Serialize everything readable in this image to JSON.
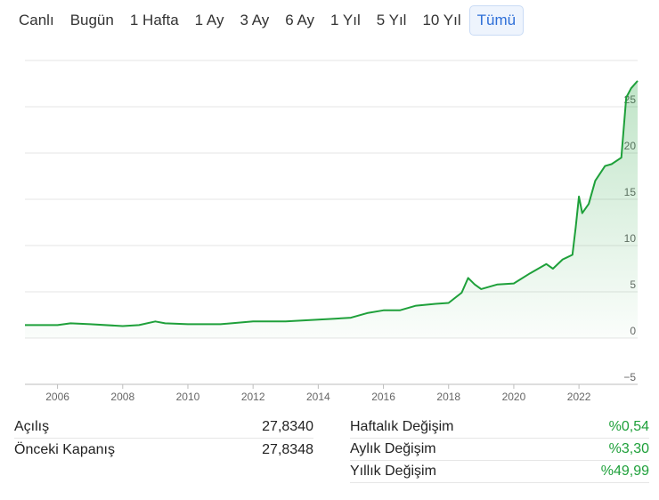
{
  "tabs": [
    {
      "label": "Canlı"
    },
    {
      "label": "Bugün"
    },
    {
      "label": "1 Hafta"
    },
    {
      "label": "1 Ay"
    },
    {
      "label": "3 Ay"
    },
    {
      "label": "6 Ay"
    },
    {
      "label": "1 Yıl"
    },
    {
      "label": "5 Yıl"
    },
    {
      "label": "10 Yıl"
    },
    {
      "label": "Tümü",
      "active": true
    }
  ],
  "chart_data": {
    "type": "area",
    "title": "",
    "xlabel": "",
    "ylabel": "",
    "xlim": [
      2005.0,
      2023.8
    ],
    "ylim": [
      -5,
      30
    ],
    "x_ticks": [
      "2006",
      "2008",
      "2010",
      "2012",
      "2014",
      "2016",
      "2018",
      "2020",
      "2022"
    ],
    "y_ticks": [
      "25",
      "20",
      "15",
      "10",
      "5",
      "0",
      "−5"
    ],
    "y_tick_values": [
      25,
      20,
      15,
      10,
      5,
      0,
      -5
    ],
    "grid": true,
    "line_color": "#1ea03a",
    "series": [
      {
        "x": [
          2005.0,
          2006.0,
          2006.4,
          2007.0,
          2008.0,
          2008.5,
          2009.0,
          2009.3,
          2010.0,
          2011.0,
          2012.0,
          2013.0,
          2013.5,
          2014.0,
          2014.5,
          2015.0,
          2015.5,
          2016.0,
          2016.5,
          2017.0,
          2017.6,
          2018.0,
          2018.4,
          2018.6,
          2018.8,
          2019.0,
          2019.5,
          2020.0,
          2020.5,
          2021.0,
          2021.2,
          2021.5,
          2021.8,
          2021.9,
          2022.0,
          2022.1,
          2022.3,
          2022.5,
          2022.8,
          2023.0,
          2023.3,
          2023.45,
          2023.6,
          2023.8
        ],
        "y": [
          1.4,
          1.4,
          1.6,
          1.5,
          1.3,
          1.4,
          1.8,
          1.6,
          1.5,
          1.5,
          1.8,
          1.8,
          1.9,
          2.0,
          2.1,
          2.2,
          2.7,
          3.0,
          3.0,
          3.5,
          3.7,
          3.8,
          4.9,
          6.5,
          5.8,
          5.3,
          5.8,
          5.9,
          7.0,
          8.0,
          7.5,
          8.5,
          9.0,
          12.0,
          15.3,
          13.5,
          14.5,
          17.0,
          18.6,
          18.8,
          19.5,
          26.0,
          27.0,
          27.8
        ]
      }
    ]
  },
  "stats": {
    "acilis_label": "Açılış",
    "acilis_value": "27,8340",
    "onceki_label": "Önceki Kapanış",
    "onceki_value": "27,8348",
    "haftalik_label": "Haftalık Değişim",
    "haftalik_value": "%0,54",
    "aylik_label": "Aylık Değişim",
    "aylik_value": "%3,30",
    "yillik_label": "Yıllık Değişim",
    "yillik_value": "%49,99"
  }
}
